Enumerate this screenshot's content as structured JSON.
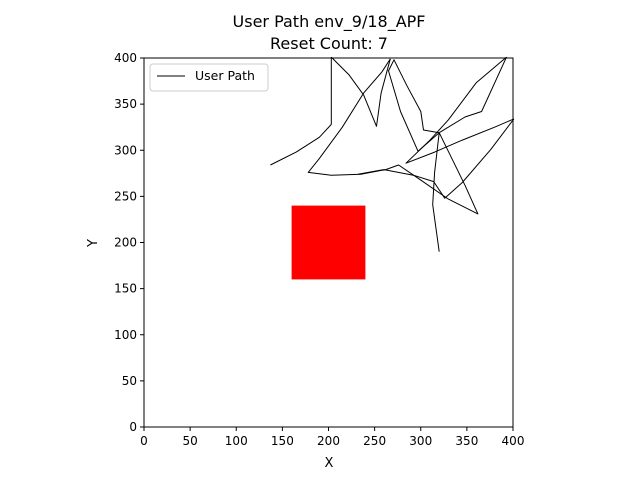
{
  "chart_data": {
    "type": "line",
    "title_line1": "User Path env_9/18_APF",
    "title_line2": "Reset Count: 7",
    "xlabel": "X",
    "ylabel": "Y",
    "xlim": [
      0,
      400
    ],
    "ylim": [
      0,
      400
    ],
    "xticks": [
      0,
      50,
      100,
      150,
      200,
      250,
      300,
      350,
      400
    ],
    "yticks": [
      0,
      50,
      100,
      150,
      200,
      250,
      300,
      350,
      400
    ],
    "grid": false,
    "legend": {
      "placement": "top-left",
      "entries": [
        "User Path"
      ]
    },
    "series": [
      {
        "name": "User Path",
        "color": "#000000",
        "segments": [
          [
            [
              137,
              284
            ],
            [
              165,
              298
            ],
            [
              190,
              314
            ],
            [
              203,
              328
            ],
            [
              203,
              401
            ]
          ],
          [
            [
              203,
              401
            ],
            [
              222,
              382
            ],
            [
              238,
              360
            ],
            [
              252,
              326
            ],
            [
              257,
              362
            ],
            [
              267,
              399
            ]
          ],
          [
            [
              267,
              399
            ],
            [
              258,
              385
            ],
            [
              238,
              362
            ],
            [
              215,
              325
            ],
            [
              190,
              291
            ],
            [
              178,
              276
            ],
            [
              203,
              273
            ],
            [
              235,
              274
            ],
            [
              262,
              279
            ],
            [
              276,
              284
            ],
            [
              298,
              269
            ],
            [
              330,
              247
            ],
            [
              362,
              231
            ],
            [
              348,
              262
            ],
            [
              320,
              319
            ],
            [
              297,
              299
            ],
            [
              278,
              342
            ],
            [
              265,
              386
            ],
            [
              271,
              398
            ],
            [
              285,
              370
            ],
            [
              300,
              342
            ],
            [
              303,
              322
            ],
            [
              320,
              319
            ],
            [
              348,
              336
            ],
            [
              366,
              342
            ],
            [
              393,
              401
            ]
          ],
          [
            [
              393,
              401
            ],
            [
              360,
              373
            ],
            [
              330,
              333
            ],
            [
              310,
              311
            ],
            [
              284,
              286
            ],
            [
              315,
              298
            ],
            [
              345,
              311
            ],
            [
              380,
              325
            ],
            [
              401,
              334
            ]
          ],
          [
            [
              401,
              334
            ],
            [
              376,
              301
            ],
            [
              345,
              265
            ],
            [
              326,
              248
            ],
            [
              314,
              266
            ],
            [
              292,
              273
            ],
            [
              260,
              279
            ],
            [
              232,
              274
            ]
          ],
          [
            [
              320,
              319
            ],
            [
              315,
              276
            ],
            [
              313,
              241
            ],
            [
              320,
              190
            ]
          ]
        ]
      }
    ],
    "obstacles": [
      {
        "name": "obstacle",
        "color": "#ff0000",
        "x": [
          160,
          240
        ],
        "y": [
          160,
          240
        ]
      }
    ]
  }
}
